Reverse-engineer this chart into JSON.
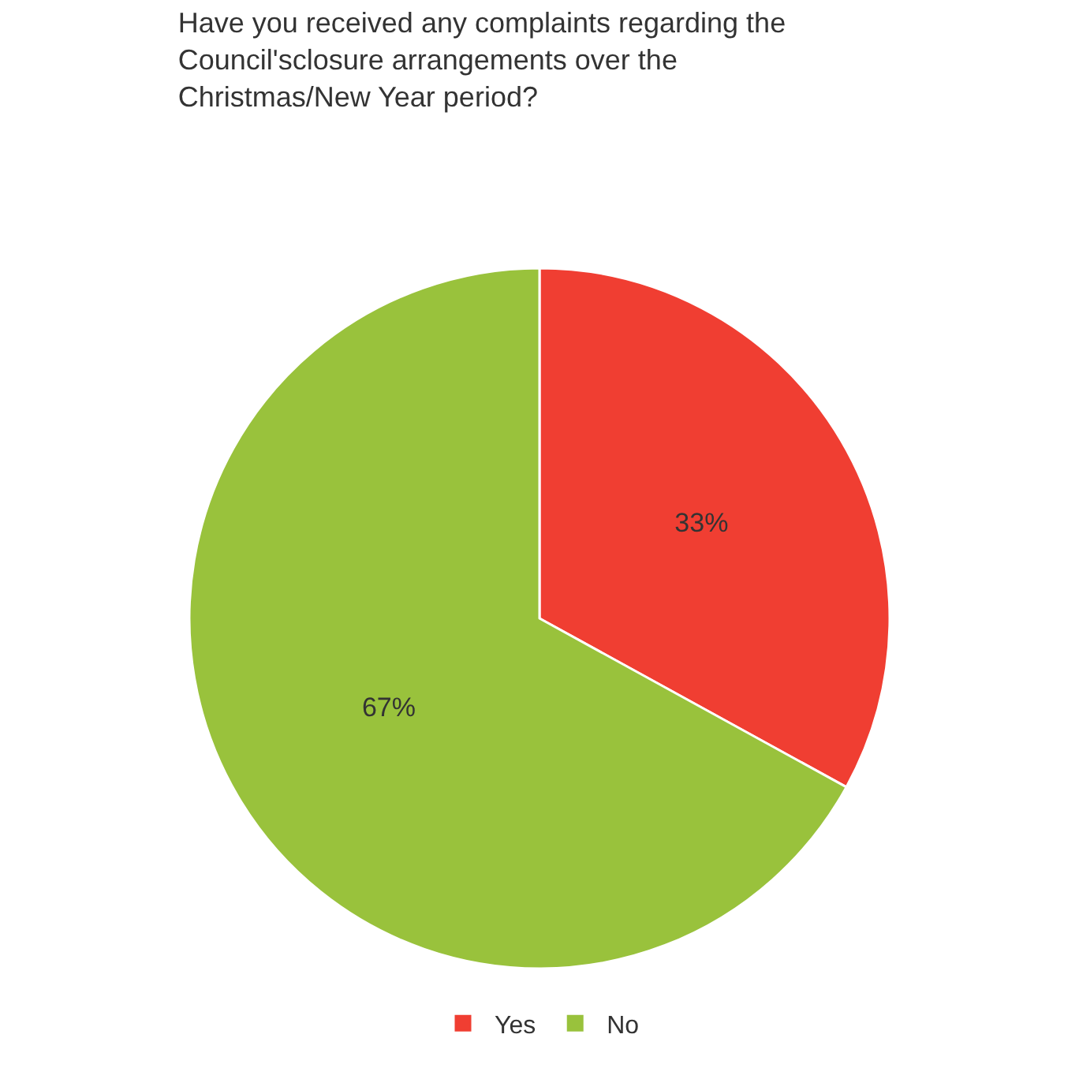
{
  "chart_data": {
    "type": "pie",
    "title": "Have you received any complaints regarding the Council'sclosure arrangements over the Christmas/New Year period?",
    "categories": [
      "Yes",
      "No"
    ],
    "values": [
      33,
      67
    ],
    "colors": [
      "#f03e32",
      "#99c23c"
    ],
    "value_labels": [
      "33%",
      "67%"
    ],
    "legend": "bottom"
  }
}
